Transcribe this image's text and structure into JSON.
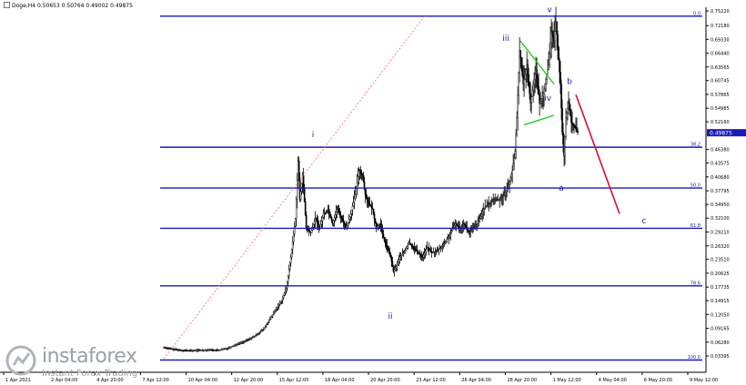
{
  "header": {
    "symbol_timeframe": "Doge,H4",
    "ohlc": "0.50653 0.50764 0.49002 0.49875"
  },
  "watermark": {
    "brand": "instaforex",
    "tagline": "Instant Forex Trading"
  },
  "colors": {
    "fib_line": "#1a1ab4",
    "wave_label": "#1a1ab4",
    "triangle": "#22cc22",
    "projection": "#d0103a",
    "trendline": "#ff6666",
    "candle": "#000000",
    "price_box": "#1a1ab4"
  },
  "chart_data": {
    "type": "candlestick",
    "title": "",
    "y_axis": {
      "min": 0.0,
      "max": 0.76,
      "ticks": [
        "0.75220",
        "0.72180",
        "0.69330",
        "0.66440",
        "0.63565",
        "0.60745",
        "0.57865",
        "0.54985",
        "0.52160",
        "0.46380",
        "0.43575",
        "0.40680",
        "0.37795",
        "0.34950",
        "0.32100",
        "0.29210",
        "0.26320",
        "0.23510",
        "0.20625",
        "0.17735",
        "0.14915",
        "0.12050",
        "0.09165",
        "0.06280",
        "0.03395"
      ]
    },
    "x_axis": {
      "ticks": [
        "1 Apr 2021",
        "2 Apr 04:00",
        "4 Apr 20:00",
        "7 Apr 12:00",
        "10 Apr 04:00",
        "12 Apr 20:00",
        "15 Apr 12:00",
        "18 Apr 04:00",
        "20 Apr 20:00",
        "23 Apr 12:00",
        "26 Apr 04:00",
        "28 Apr 20:00",
        "1 May 12:00",
        "4 May 04:00",
        "6 May 20:00",
        "9 May 12:00"
      ]
    },
    "current_price": "0.49875",
    "fib_levels": [
      {
        "label": "0.0",
        "price": 0.7415
      },
      {
        "label": "38.2",
        "price": 0.4686
      },
      {
        "label": "50.0",
        "price": 0.3836
      },
      {
        "label": "61.8",
        "price": 0.2997
      },
      {
        "label": "78.6",
        "price": 0.18
      },
      {
        "label": "100.0",
        "price": 0.0255
      }
    ],
    "wave_labels": [
      "i",
      "ii",
      "iii",
      "iv",
      "v",
      "a",
      "b",
      "c"
    ],
    "close_path": [
      [
        0,
        0.052
      ],
      [
        10,
        0.048
      ],
      [
        20,
        0.046
      ],
      [
        30,
        0.045
      ],
      [
        40,
        0.046
      ],
      [
        50,
        0.047
      ],
      [
        60,
        0.046
      ],
      [
        70,
        0.05
      ],
      [
        80,
        0.058
      ],
      [
        90,
        0.065
      ],
      [
        100,
        0.075
      ],
      [
        110,
        0.09
      ],
      [
        120,
        0.12
      ],
      [
        130,
        0.15
      ],
      [
        135,
        0.175
      ],
      [
        140,
        0.24
      ],
      [
        145,
        0.32
      ],
      [
        148,
        0.44
      ],
      [
        150,
        0.36
      ],
      [
        153,
        0.41
      ],
      [
        157,
        0.3
      ],
      [
        162,
        0.29
      ],
      [
        167,
        0.32
      ],
      [
        172,
        0.3
      ],
      [
        176,
        0.33
      ],
      [
        181,
        0.34
      ],
      [
        186,
        0.31
      ],
      [
        191,
        0.34
      ],
      [
        196,
        0.32
      ],
      [
        201,
        0.3
      ],
      [
        206,
        0.33
      ],
      [
        211,
        0.37
      ],
      [
        215,
        0.42
      ],
      [
        219,
        0.41
      ],
      [
        222,
        0.37
      ],
      [
        226,
        0.35
      ],
      [
        230,
        0.34
      ],
      [
        234,
        0.3
      ],
      [
        238,
        0.31
      ],
      [
        242,
        0.28
      ],
      [
        246,
        0.26
      ],
      [
        250,
        0.24
      ],
      [
        253,
        0.21
      ],
      [
        256,
        0.22
      ],
      [
        260,
        0.24
      ],
      [
        265,
        0.25
      ],
      [
        270,
        0.27
      ],
      [
        275,
        0.26
      ],
      [
        280,
        0.25
      ],
      [
        285,
        0.24
      ],
      [
        290,
        0.26
      ],
      [
        295,
        0.25
      ],
      [
        300,
        0.25
      ],
      [
        305,
        0.26
      ],
      [
        310,
        0.27
      ],
      [
        316,
        0.29
      ],
      [
        321,
        0.31
      ],
      [
        326,
        0.3
      ],
      [
        331,
        0.31
      ],
      [
        336,
        0.29
      ],
      [
        341,
        0.3
      ],
      [
        346,
        0.31
      ],
      [
        352,
        0.34
      ],
      [
        358,
        0.35
      ],
      [
        364,
        0.36
      ],
      [
        370,
        0.36
      ],
      [
        375,
        0.37
      ],
      [
        380,
        0.39
      ],
      [
        384,
        0.42
      ],
      [
        387,
        0.46
      ],
      [
        389,
        0.53
      ],
      [
        392,
        0.67
      ],
      [
        396,
        0.6
      ],
      [
        400,
        0.64
      ],
      [
        404,
        0.56
      ],
      [
        407,
        0.6
      ],
      [
        410,
        0.63
      ],
      [
        414,
        0.56
      ],
      [
        418,
        0.58
      ],
      [
        421,
        0.61
      ],
      [
        424,
        0.64
      ],
      [
        427,
        0.71
      ],
      [
        430,
        0.69
      ],
      [
        432,
        0.73
      ],
      [
        435,
        0.65
      ],
      [
        437,
        0.6
      ],
      [
        439,
        0.5
      ],
      [
        441,
        0.45
      ],
      [
        443,
        0.53
      ],
      [
        446,
        0.56
      ],
      [
        449,
        0.52
      ],
      [
        453,
        0.51
      ],
      [
        456,
        0.499
      ]
    ]
  }
}
